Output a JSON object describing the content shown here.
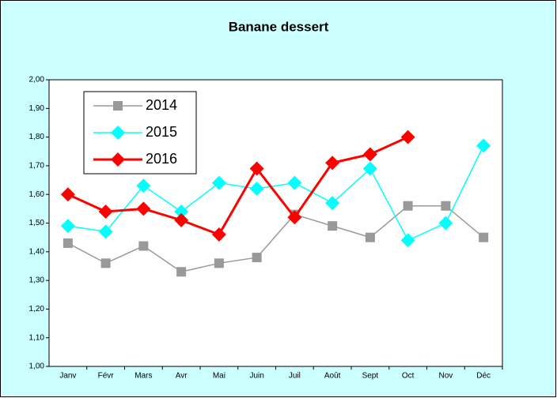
{
  "chart_data": {
    "type": "line",
    "title": "Banane dessert",
    "categories": [
      "Janv",
      "Févr",
      "Mars",
      "Avr",
      "Mai",
      "Juin",
      "Juil",
      "Août",
      "Sept",
      "Oct",
      "Nov",
      "Déc"
    ],
    "series": [
      {
        "name": "2014",
        "color": "#999999",
        "marker": "square",
        "line_width": 1.5,
        "values": [
          1.43,
          1.36,
          1.42,
          1.33,
          1.36,
          1.38,
          1.53,
          1.49,
          1.45,
          1.56,
          1.56,
          1.45
        ]
      },
      {
        "name": "2015",
        "color": "#00ffff",
        "marker": "diamond",
        "line_width": 1.5,
        "values": [
          1.49,
          1.47,
          1.63,
          1.54,
          1.64,
          1.62,
          1.64,
          1.57,
          1.69,
          1.44,
          1.5,
          1.77
        ]
      },
      {
        "name": "2016",
        "color": "#ff0000",
        "marker": "diamond",
        "line_width": 3,
        "values": [
          1.6,
          1.54,
          1.55,
          1.51,
          1.46,
          1.69,
          1.52,
          1.71,
          1.74,
          1.8,
          null,
          null
        ]
      }
    ],
    "ylim": [
      1.0,
      2.0
    ],
    "yticks": [
      {
        "value": 1.0,
        "label": "1,00"
      },
      {
        "value": 1.1,
        "label": "1,10"
      },
      {
        "value": 1.2,
        "label": "1,20"
      },
      {
        "value": 1.3,
        "label": "1,30"
      },
      {
        "value": 1.4,
        "label": "1,40"
      },
      {
        "value": 1.5,
        "label": "1,50"
      },
      {
        "value": 1.6,
        "label": "1,60"
      },
      {
        "value": 1.7,
        "label": "1,70"
      },
      {
        "value": 1.8,
        "label": "1,80"
      },
      {
        "value": 1.9,
        "label": "1,90"
      },
      {
        "value": 2.0,
        "label": "2,00"
      }
    ],
    "legend": "upper left"
  }
}
